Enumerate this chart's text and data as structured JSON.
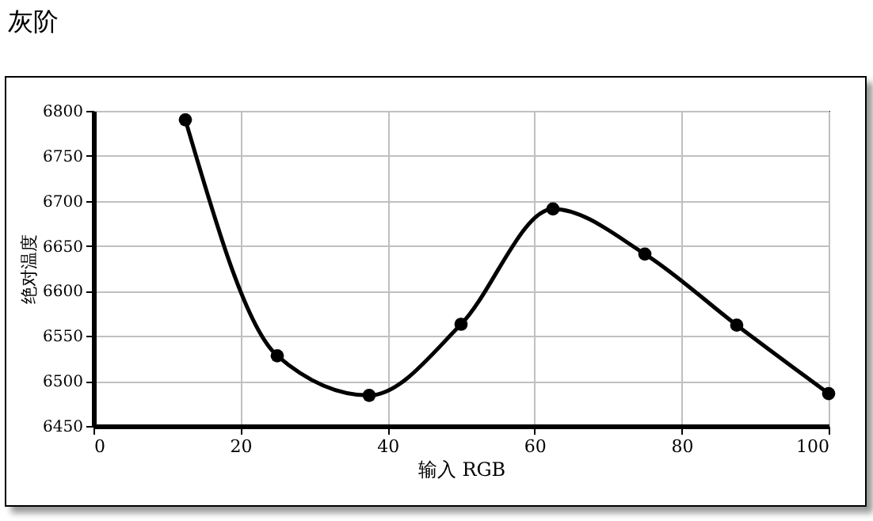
{
  "chart_data": {
    "type": "line",
    "title": "灰阶",
    "xlabel": "输入 RGB",
    "ylabel": "绝对温度",
    "x": [
      12.5,
      25,
      37.5,
      50,
      62.5,
      75,
      87.5,
      100
    ],
    "series": [
      {
        "color": "#000000",
        "values": [
          6790,
          6528,
          6484,
          6563,
          6691,
          6641,
          6562,
          6486
        ]
      }
    ],
    "xlim": [
      0,
      100
    ],
    "xticks": [
      0,
      20,
      40,
      60,
      80,
      100
    ],
    "ylim": [
      6450,
      6800
    ],
    "yticks": [
      6450,
      6500,
      6550,
      6600,
      6650,
      6700,
      6750,
      6800
    ],
    "grid": true,
    "marker": "circle",
    "line_style": "solid"
  }
}
